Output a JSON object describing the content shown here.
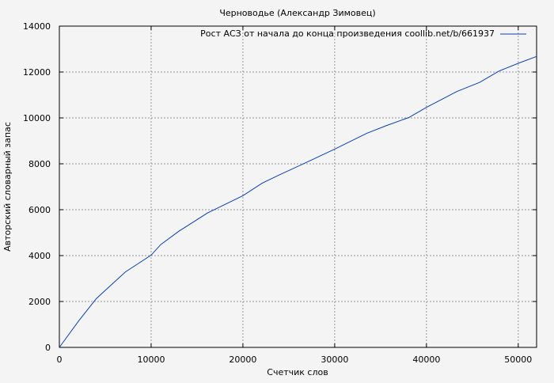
{
  "chart_data": {
    "type": "line",
    "title": "Черноводье (Александр Зимовец)",
    "xlabel": "Счетчик слов",
    "ylabel": "Авторский словарный запас",
    "xlim": [
      0,
      52000
    ],
    "ylim": [
      0,
      14000
    ],
    "xticks": [
      0,
      10000,
      20000,
      30000,
      40000,
      50000
    ],
    "yticks": [
      0,
      2000,
      4000,
      6000,
      8000,
      10000,
      12000,
      14000
    ],
    "grid": true,
    "legend_position": "top-right",
    "series": [
      {
        "name": "Рост АСЗ от начала до конца произведения coollib.net/b/661937",
        "color": "#0a3fb0",
        "x": [
          0,
          2100,
          4040,
          7200,
          10000,
          11050,
          13000,
          16150,
          20000,
          22100,
          24050,
          26850,
          30000,
          33500,
          35600,
          38100,
          40000,
          43300,
          45800,
          47900,
          50000,
          52000
        ],
        "y": [
          0,
          1150,
          2130,
          3290,
          4020,
          4480,
          5060,
          5860,
          6610,
          7160,
          7530,
          8050,
          8640,
          9330,
          9660,
          10020,
          10460,
          11150,
          11550,
          12040,
          12380,
          12680
        ]
      }
    ]
  }
}
